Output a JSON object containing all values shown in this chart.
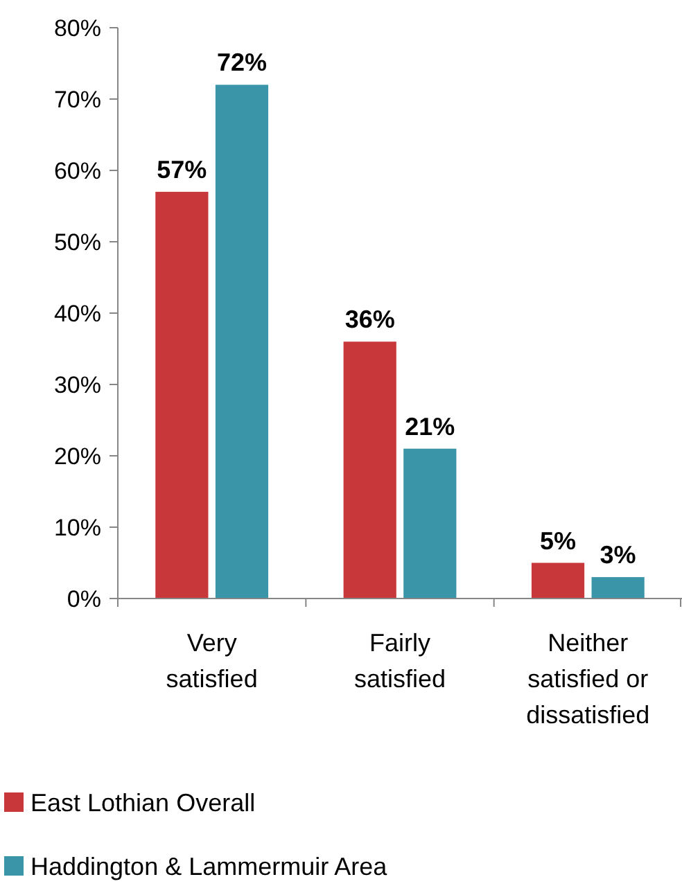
{
  "chart_data": {
    "type": "bar",
    "categories": [
      "Very satisfied",
      "Fairly satisfied",
      "Neither satisfied or dissatisfied"
    ],
    "series": [
      {
        "name": "East Lothian Overall",
        "color": "#c8373a",
        "values": [
          57,
          36,
          5
        ],
        "value_labels": [
          "57%",
          "36%",
          "5%"
        ]
      },
      {
        "name": "Haddington & Lammermuir Area",
        "color": "#3a95a9",
        "values": [
          72,
          21,
          3
        ],
        "value_labels": [
          "72%",
          "21%",
          "3%"
        ]
      }
    ],
    "ylim": [
      0,
      80
    ],
    "yticks": [
      {
        "value": 0,
        "label": "0%"
      },
      {
        "value": 10,
        "label": "10%"
      },
      {
        "value": 20,
        "label": "20%"
      },
      {
        "value": 30,
        "label": "30%"
      },
      {
        "value": 40,
        "label": "40%"
      },
      {
        "value": 50,
        "label": "50%"
      },
      {
        "value": 60,
        "label": "60%"
      },
      {
        "value": 70,
        "label": "70%"
      },
      {
        "value": 80,
        "label": "80%"
      }
    ],
    "grid": false,
    "legend": "bottom"
  }
}
